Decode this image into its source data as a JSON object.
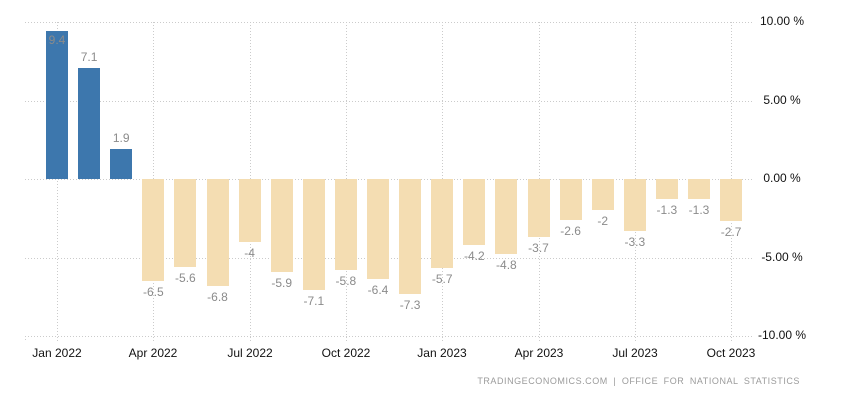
{
  "chart_data": {
    "type": "bar",
    "title": "",
    "xlabel": "",
    "ylabel": "",
    "categories": [
      "Jan 2022",
      "Feb 2022",
      "Mar 2022",
      "Apr 2022",
      "May 2022",
      "Jun 2022",
      "Jul 2022",
      "Aug 2022",
      "Sep 2022",
      "Oct 2022",
      "Nov 2022",
      "Dec 2022",
      "Jan 2023",
      "Feb 2023",
      "Mar 2023",
      "Apr 2023",
      "May 2023",
      "Jun 2023",
      "Jul 2023",
      "Aug 2023",
      "Sep 2023",
      "Oct 2023"
    ],
    "values": [
      9.4,
      7.1,
      1.9,
      -6.5,
      -5.6,
      -6.8,
      -4,
      -5.9,
      -7.1,
      -5.8,
      -6.4,
      -7.3,
      -5.7,
      -4.2,
      -4.8,
      -3.7,
      -2.6,
      -2,
      -3.3,
      -1.3,
      -1.3,
      -2.7
    ],
    "value_labels": [
      "9.4",
      "7.1",
      "1.9",
      "-6.5",
      "-5.6",
      "-6.8",
      "-4",
      "-5.9",
      "-7.1",
      "-5.8",
      "-6.4",
      "-7.3",
      "-5.7",
      "-4.2",
      "-4.8",
      "-3.7",
      "-2.6",
      "-2",
      "-3.3",
      "-1.3",
      "-1.3",
      "-2.7"
    ],
    "x_tick_labels": [
      "Jan 2022",
      "Apr 2022",
      "Jul 2022",
      "Oct 2022",
      "Jan 2023",
      "Apr 2023",
      "Jul 2023",
      "Oct 2023"
    ],
    "y_tick_values": [
      10,
      5,
      0,
      -5,
      -10
    ],
    "y_tick_labels": [
      "10.00 %",
      "5.00 %",
      "0.00 %",
      "-5.00 %",
      "-10.00 %"
    ],
    "ylim": [
      -10,
      10
    ],
    "grid": "dotted",
    "legend": "none",
    "colors": {
      "positive": "#3D77AD",
      "negative": "#F4DDB2",
      "grid": "#cbcbcb",
      "value_label": "#8b8b8b",
      "axis_label": "#111111"
    }
  },
  "footer": {
    "attribution": "TRADINGECONOMICS.COM | OFFICE FOR NATIONAL STATISTICS"
  }
}
